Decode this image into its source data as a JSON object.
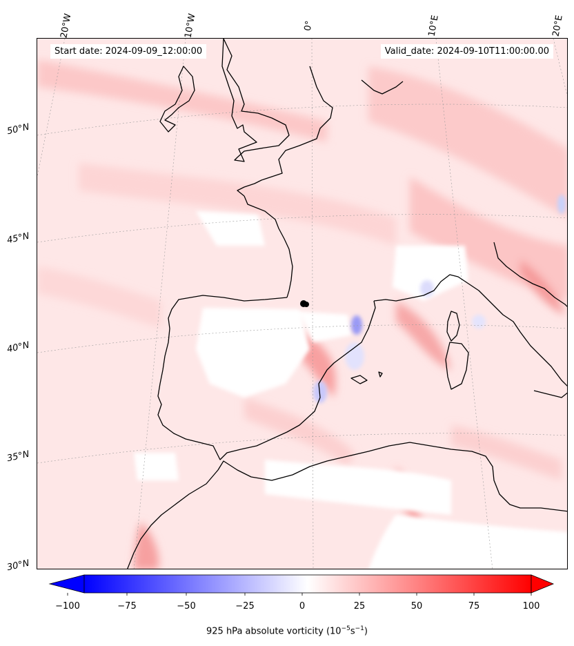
{
  "header": {
    "start_date": "Start date: 2024-09-09_12:00:00",
    "valid_date": "Valid_date: 2024-09-10T11:00:00.00"
  },
  "longitude_labels": [
    "20°W",
    "10°W",
    "0°",
    "10°E",
    "20°E"
  ],
  "latitude_labels": [
    "50°N",
    "45°N",
    "40°N",
    "35°N",
    "30°N"
  ],
  "colorbar": {
    "ticks": [
      "−100",
      "−75",
      "−50",
      "−25",
      "0",
      "25",
      "50",
      "75",
      "100"
    ],
    "range": [
      -100,
      100
    ],
    "label_prefix": "925 hPa absolute vorticity (10",
    "label_exp1": "−5",
    "label_mid": "s",
    "label_exp2": "−1",
    "label_suffix": ")",
    "colormap": "bwr",
    "extend": "both"
  },
  "colors": {
    "negative": "#0000ff",
    "zero": "#ffffff",
    "positive": "#ff0000",
    "coastline": "#000000"
  },
  "marker": {
    "type": "dot",
    "color": "#000000"
  }
}
